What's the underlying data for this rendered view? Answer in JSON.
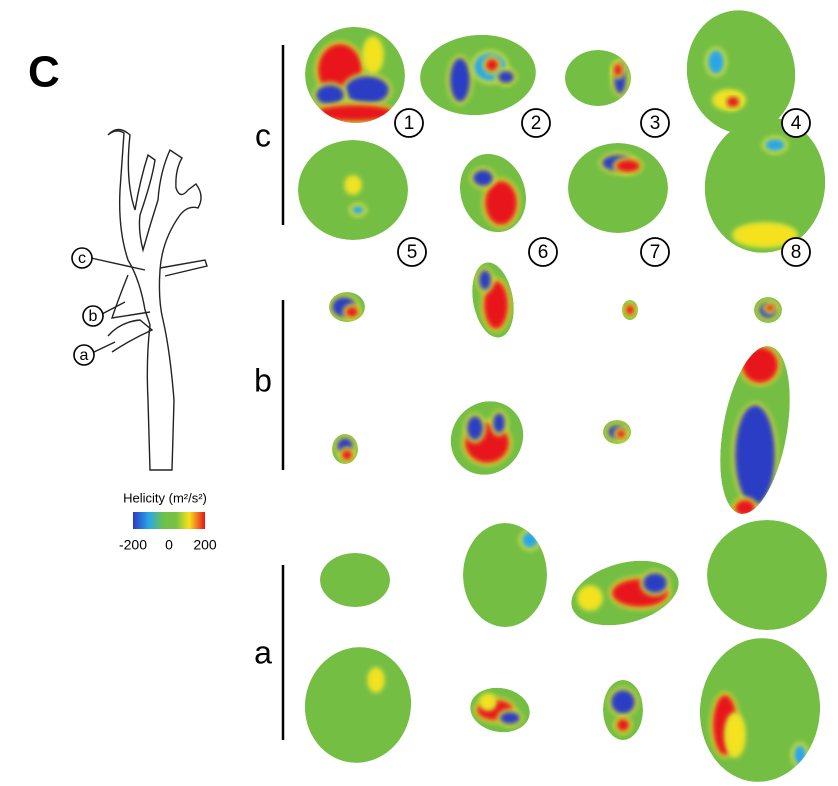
{
  "panel_label": "C",
  "groups": [
    {
      "label": "c"
    },
    {
      "label": "b"
    },
    {
      "label": "a"
    }
  ],
  "cross_section_numbers": [
    "1",
    "2",
    "3",
    "4",
    "5",
    "6",
    "7",
    "8"
  ],
  "vessel_diagram": {
    "labels": [
      "c",
      "b",
      "a"
    ]
  },
  "colorbar": {
    "title": "Helicity (m²/s²)",
    "ticks": [
      -200,
      0,
      200
    ]
  }
}
